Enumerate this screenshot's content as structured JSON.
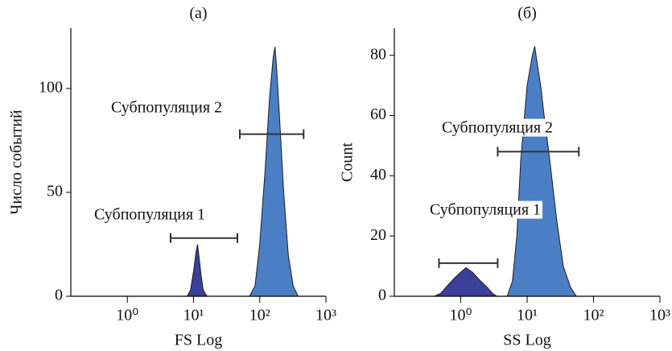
{
  "chart_data": [
    {
      "type": "area",
      "title": "(a)",
      "xlabel": "FS Log",
      "ylabel": "Число событий",
      "xscale": "log",
      "xlim": [
        0.14,
        1000
      ],
      "ylim": [
        0,
        129
      ],
      "xticks": [
        {
          "value": 1,
          "label": "10⁰"
        },
        {
          "value": 10,
          "label": "10¹"
        },
        {
          "value": 100,
          "label": "10²"
        },
        {
          "value": 1000,
          "label": "10³"
        }
      ],
      "yticks": [
        0,
        50,
        100
      ],
      "series": [
        {
          "color": "#3b3f98",
          "x": [
            8,
            9,
            10,
            11,
            11.5,
            12,
            13,
            14,
            16
          ],
          "values": [
            0,
            3,
            12,
            22,
            25,
            20,
            10,
            3,
            0
          ]
        },
        {
          "color": "#4a7fc6",
          "x": [
            70,
            85,
            100,
            120,
            140,
            160,
            170,
            180,
            200,
            230,
            270,
            320,
            380
          ],
          "values": [
            0,
            5,
            25,
            60,
            95,
            115,
            120,
            110,
            85,
            50,
            20,
            5,
            0
          ]
        }
      ],
      "gates": [
        {
          "x": [
            4.5,
            46
          ],
          "y": 28
        },
        {
          "x": [
            50,
            460
          ],
          "y": 78
        }
      ],
      "annotations": [
        "Субпопуляция 1",
        "Субпопуляция 2"
      ]
    },
    {
      "type": "area",
      "title": "(б)",
      "xlabel": "SS Log",
      "ylabel": "Count",
      "xscale": "log",
      "xlim": [
        0.1,
        1000
      ],
      "ylim": [
        0,
        89
      ],
      "xticks": [
        {
          "value": 1,
          "label": "10⁰"
        },
        {
          "value": 10,
          "label": "10¹"
        },
        {
          "value": 100,
          "label": "10²"
        },
        {
          "value": 1000,
          "label": "10³"
        }
      ],
      "yticks": [
        0,
        20,
        40,
        60,
        80
      ],
      "series": [
        {
          "color": "#3b3f98",
          "x": [
            0.4,
            0.5,
            0.6,
            0.8,
            1,
            1.2,
            1.5,
            2,
            2.5,
            3,
            3.5
          ],
          "values": [
            0,
            1,
            3,
            6,
            8,
            9.5,
            8,
            5,
            3,
            1,
            0
          ]
        },
        {
          "color": "#4a7fc6",
          "x": [
            5,
            6,
            7,
            8,
            10,
            12,
            13,
            14,
            16,
            18,
            22,
            28,
            35,
            45,
            55
          ],
          "values": [
            0,
            5,
            20,
            45,
            70,
            80,
            83,
            78,
            70,
            60,
            45,
            25,
            10,
            3,
            0
          ]
        }
      ],
      "gates": [
        {
          "x": [
            0.47,
            3.6
          ],
          "y": 11
        },
        {
          "x": [
            3.6,
            60
          ],
          "y": 48
        }
      ],
      "annotations": [
        "Субпопуляция 1",
        "Субпопуляция 2"
      ]
    }
  ]
}
